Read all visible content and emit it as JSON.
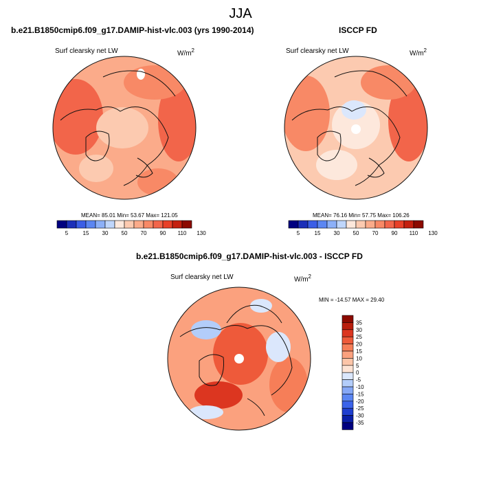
{
  "figure_title": "JJA",
  "colors": {
    "blue_scale": [
      "#000080",
      "#1c2fb8",
      "#3b5ee6",
      "#5b86f2",
      "#8cb0f8",
      "#bfd6fb"
    ],
    "red_scale": [
      "#fde8dc",
      "#fccab0",
      "#fbab8a",
      "#f88966",
      "#f2654a",
      "#e84028",
      "#c4200f",
      "#8c0a00"
    ],
    "diff_scale": [
      "#000080",
      "#0a1fa8",
      "#1f3fd0",
      "#3b63ea",
      "#5b86f2",
      "#86a8f6",
      "#b3cdfa",
      "#dbe7fc",
      "#fde3d4",
      "#fcc5a8",
      "#fba17e",
      "#f67e58",
      "#ee5a3a",
      "#dc3620",
      "#b91e0d",
      "#8c0a00"
    ],
    "coast": "#111111"
  },
  "panels": [
    {
      "title": "b.e21.B1850cmip6.f09_g17.DAMIP-hist-vlc.003 (yrs 1990-2014)",
      "variable": "Surf clearsky net LW",
      "units_base": "W/m",
      "units_exp": "2",
      "stats": "MEAN=  85.01  Min=  53.67  Max= 121.05",
      "colorbar_ticks": [
        "5",
        "15",
        "30",
        "50",
        "70",
        "90",
        "110",
        "130"
      ]
    },
    {
      "title": "ISCCP FD",
      "variable": "Surf clearsky net LW",
      "units_base": "W/m",
      "units_exp": "2",
      "stats": "MEAN=  76.16  Min=  57.75  Max= 106.26",
      "colorbar_ticks": [
        "5",
        "15",
        "30",
        "50",
        "70",
        "90",
        "110",
        "130"
      ]
    },
    {
      "title": "b.e21.B1850cmip6.f09_g17.DAMIP-hist-vlc.003 - ISCCP FD",
      "variable": "Surf clearsky net LW",
      "units_base": "W/m",
      "units_exp": "2",
      "stats": "MIN = -14.57 MAX =  29.40",
      "colorbar_ticks": [
        "35",
        "30",
        "25",
        "20",
        "15",
        "10",
        "5",
        "0",
        "-5",
        "-10",
        "-15",
        "-20",
        "-25",
        "-30",
        "-35"
      ]
    }
  ],
  "chart_data": [
    {
      "type": "heatmap",
      "projection": "north polar stereographic",
      "season": "JJA",
      "field": "Surf clearsky net LW",
      "units": "W/m^2",
      "source": "b.e21.B1850cmip6.f09_g17.DAMIP-hist-vlc.003 (yrs 1990-2014)",
      "mean": 85.01,
      "min": 53.67,
      "max": 121.05,
      "levels": [
        5,
        10,
        15,
        20,
        30,
        40,
        50,
        60,
        70,
        80,
        90,
        100,
        110,
        120,
        130
      ]
    },
    {
      "type": "heatmap",
      "projection": "north polar stereographic",
      "season": "JJA",
      "field": "Surf clearsky net LW",
      "units": "W/m^2",
      "source": "ISCCP FD",
      "mean": 76.16,
      "min": 57.75,
      "max": 106.26,
      "levels": [
        5,
        10,
        15,
        20,
        30,
        40,
        50,
        60,
        70,
        80,
        90,
        100,
        110,
        120,
        130
      ]
    },
    {
      "type": "heatmap",
      "projection": "north polar stereographic",
      "season": "JJA",
      "field": "Surf clearsky net LW (model - obs)",
      "units": "W/m^2",
      "source": "b.e21.B1850cmip6.f09_g17.DAMIP-hist-vlc.003 - ISCCP FD",
      "min": -14.57,
      "max": 29.4,
      "levels": [
        -35,
        -30,
        -25,
        -20,
        -15,
        -10,
        -5,
        0,
        5,
        10,
        15,
        20,
        25,
        30,
        35
      ]
    }
  ]
}
